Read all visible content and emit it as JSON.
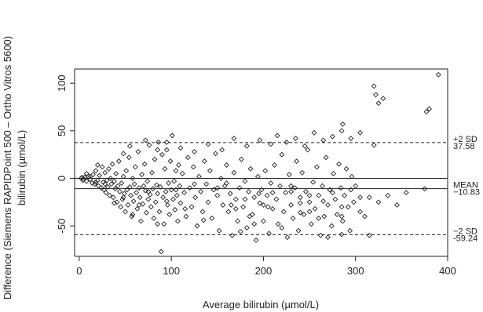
{
  "chart_data": {
    "type": "scatter",
    "title": "",
    "xlabel": "Average bilirubin (µmol/L)",
    "ylabel_line1": "Difference (Siemens RAPIDPoint 500 – Ortho Vitros 5600)",
    "ylabel_line2": "bilirubin (µmol/L)",
    "xlim": [
      -5,
      400
    ],
    "ylim": [
      -82,
      115
    ],
    "xticks": [
      "0",
      "100",
      "200",
      "300",
      "400"
    ],
    "yticks": [
      "-50",
      "0",
      "50",
      "100"
    ],
    "marker": "diamond-open",
    "reference_lines": [
      {
        "value": 37.58,
        "style": "dashed",
        "label_top": "+2 SD",
        "label_bottom": "37.58"
      },
      {
        "value": -10.83,
        "style": "solid",
        "label_top": "MEAN",
        "label_bottom": "−10.83"
      },
      {
        "value": -59.24,
        "style": "dashed",
        "label_top": "−2 SD",
        "label_bottom": "-59.24"
      }
    ],
    "zero_line": 0,
    "points": [
      [
        2,
        0
      ],
      [
        4,
        -2
      ],
      [
        6,
        1
      ],
      [
        8,
        -3
      ],
      [
        10,
        2
      ],
      [
        12,
        -1
      ],
      [
        14,
        -5
      ],
      [
        15,
        4
      ],
      [
        17,
        -6
      ],
      [
        18,
        8
      ],
      [
        20,
        -2
      ],
      [
        21,
        -8
      ],
      [
        22,
        3
      ],
      [
        24,
        -10
      ],
      [
        25,
        12
      ],
      [
        26,
        -4
      ],
      [
        27,
        -12
      ],
      [
        28,
        6
      ],
      [
        29,
        -15
      ],
      [
        30,
        -2
      ],
      [
        31,
        -9
      ],
      [
        32,
        10
      ],
      [
        33,
        -18
      ],
      [
        34,
        0
      ],
      [
        35,
        -6
      ],
      [
        36,
        15
      ],
      [
        37,
        -20
      ],
      [
        38,
        -3
      ],
      [
        39,
        -11
      ],
      [
        40,
        5
      ],
      [
        41,
        -25
      ],
      [
        42,
        -8
      ],
      [
        43,
        18
      ],
      [
        44,
        -14
      ],
      [
        45,
        -30
      ],
      [
        46,
        -5
      ],
      [
        47,
        -22
      ],
      [
        48,
        2
      ],
      [
        49,
        -16
      ],
      [
        50,
        -35
      ],
      [
        51,
        8
      ],
      [
        52,
        -12
      ],
      [
        53,
        -28
      ],
      [
        54,
        22
      ],
      [
        55,
        -9
      ],
      [
        56,
        -18
      ],
      [
        57,
        -40
      ],
      [
        58,
        0
      ],
      [
        59,
        -24
      ],
      [
        60,
        -6
      ],
      [
        61,
        12
      ],
      [
        62,
        -15
      ],
      [
        63,
        -32
      ],
      [
        64,
        28
      ],
      [
        65,
        -10
      ],
      [
        66,
        -20
      ],
      [
        67,
        -45
      ],
      [
        68,
        4
      ],
      [
        69,
        -27
      ],
      [
        70,
        -8
      ],
      [
        71,
        15
      ],
      [
        72,
        -13
      ],
      [
        73,
        -36
      ],
      [
        74,
        -3
      ],
      [
        75,
        -22
      ],
      [
        76,
        35
      ],
      [
        77,
        -17
      ],
      [
        78,
        -30
      ],
      [
        79,
        6
      ],
      [
        80,
        -11
      ],
      [
        81,
        -42
      ],
      [
        82,
        20
      ],
      [
        83,
        -25
      ],
      [
        84,
        -7
      ],
      [
        85,
        -16
      ],
      [
        86,
        38
      ],
      [
        87,
        -35
      ],
      [
        88,
        -9
      ],
      [
        89,
        -77
      ],
      [
        90,
        25
      ],
      [
        91,
        -20
      ],
      [
        92,
        -48
      ],
      [
        93,
        10
      ],
      [
        94,
        -14
      ],
      [
        95,
        30
      ],
      [
        96,
        -28
      ],
      [
        97,
        -5
      ],
      [
        98,
        -38
      ],
      [
        99,
        18
      ],
      [
        100,
        -12
      ],
      [
        101,
        45
      ],
      [
        102,
        -22
      ],
      [
        103,
        -3
      ],
      [
        104,
        -33
      ],
      [
        105,
        8
      ],
      [
        106,
        -18
      ],
      [
        107,
        -45
      ],
      [
        108,
        14
      ],
      [
        109,
        -8
      ],
      [
        110,
        -26
      ],
      [
        112,
        5
      ],
      [
        114,
        -15
      ],
      [
        116,
        -40
      ],
      [
        118,
        22
      ],
      [
        120,
        -10
      ],
      [
        122,
        -30
      ],
      [
        124,
        12
      ],
      [
        126,
        -20
      ],
      [
        128,
        -50
      ],
      [
        130,
        2
      ],
      [
        132,
        -14
      ],
      [
        134,
        -35
      ],
      [
        136,
        18
      ],
      [
        138,
        -6
      ],
      [
        140,
        -25
      ],
      [
        142,
        8
      ],
      [
        144,
        -42
      ],
      [
        146,
        -12
      ],
      [
        148,
        26
      ],
      [
        150,
        -18
      ],
      [
        152,
        -55
      ],
      [
        154,
        0
      ],
      [
        156,
        -28
      ],
      [
        158,
        -8
      ],
      [
        160,
        14
      ],
      [
        162,
        -35
      ],
      [
        164,
        -16
      ],
      [
        166,
        -60
      ],
      [
        168,
        6
      ],
      [
        170,
        -22
      ],
      [
        172,
        -45
      ],
      [
        174,
        -10
      ],
      [
        176,
        20
      ],
      [
        178,
        -30
      ],
      [
        180,
        -3
      ],
      [
        182,
        -52
      ],
      [
        184,
        -14
      ],
      [
        186,
        10
      ],
      [
        188,
        -38
      ],
      [
        190,
        -20
      ],
      [
        192,
        -65
      ],
      [
        194,
        2
      ],
      [
        196,
        -26
      ],
      [
        198,
        -12
      ],
      [
        200,
        -45
      ],
      [
        202,
        8
      ],
      [
        204,
        -18
      ],
      [
        206,
        -58
      ],
      [
        208,
        -5
      ],
      [
        210,
        -32
      ],
      [
        212,
        14
      ],
      [
        214,
        -22
      ],
      [
        216,
        -48
      ],
      [
        218,
        -8
      ],
      [
        220,
        25
      ],
      [
        222,
        -35
      ],
      [
        224,
        -15
      ],
      [
        226,
        -62
      ],
      [
        228,
        4
      ],
      [
        230,
        -28
      ],
      [
        232,
        -42
      ],
      [
        234,
        -10
      ],
      [
        236,
        18
      ],
      [
        238,
        -55
      ],
      [
        240,
        -20
      ],
      [
        242,
        6
      ],
      [
        244,
        -38
      ],
      [
        246,
        -14
      ],
      [
        248,
        30
      ],
      [
        250,
        -25
      ],
      [
        252,
        -48
      ],
      [
        254,
        -4
      ],
      [
        256,
        -32
      ],
      [
        258,
        12
      ],
      [
        260,
        -18
      ],
      [
        262,
        -60
      ],
      [
        264,
        -8
      ],
      [
        266,
        -40
      ],
      [
        268,
        22
      ],
      [
        270,
        -28
      ],
      [
        272,
        -12
      ],
      [
        274,
        -50
      ],
      [
        276,
        5
      ],
      [
        278,
        -22
      ],
      [
        280,
        -38
      ],
      [
        282,
        15
      ],
      [
        284,
        -10
      ],
      [
        286,
        -45
      ],
      [
        288,
        -18
      ],
      [
        290,
        10
      ],
      [
        292,
        -30
      ],
      [
        294,
        -55
      ],
      [
        296,
        2
      ],
      [
        298,
        -25
      ],
      [
        300,
        -8
      ],
      [
        305,
        -20
      ],
      [
        310,
        -40
      ],
      [
        315,
        -60
      ],
      [
        20,
        14
      ],
      [
        48,
        26
      ],
      [
        55,
        34
      ],
      [
        72,
        40
      ],
      [
        85,
        30
      ],
      [
        95,
        38
      ],
      [
        110,
        32
      ],
      [
        125,
        28
      ],
      [
        140,
        36
      ],
      [
        155,
        30
      ],
      [
        168,
        42
      ],
      [
        182,
        34
      ],
      [
        196,
        40
      ],
      [
        208,
        36
      ],
      [
        215,
        45
      ],
      [
        225,
        38
      ],
      [
        235,
        42
      ],
      [
        245,
        34
      ],
      [
        255,
        48
      ],
      [
        265,
        40
      ],
      [
        275,
        44
      ],
      [
        285,
        50
      ],
      [
        295,
        42
      ],
      [
        305,
        48
      ],
      [
        160,
        -5
      ],
      [
        170,
        -32
      ],
      [
        180,
        -22
      ],
      [
        190,
        -48
      ],
      [
        200,
        -28
      ],
      [
        210,
        -15
      ],
      [
        220,
        -52
      ],
      [
        230,
        -8
      ],
      [
        240,
        -36
      ],
      [
        250,
        -18
      ],
      [
        260,
        -42
      ],
      [
        275,
        -15
      ],
      [
        285,
        -30
      ],
      [
        295,
        -12
      ],
      [
        305,
        -35
      ],
      [
        315,
        -20
      ],
      [
        325,
        -25
      ],
      [
        335,
        -18
      ],
      [
        345,
        -28
      ],
      [
        355,
        -15
      ],
      [
        286,
        57
      ],
      [
        320,
        35
      ],
      [
        320,
        97
      ],
      [
        322,
        88
      ],
      [
        325,
        79
      ],
      [
        330,
        84
      ],
      [
        375,
        -11
      ],
      [
        377,
        70
      ],
      [
        380,
        73
      ],
      [
        390,
        109
      ],
      [
        270,
        -62
      ],
      [
        285,
        -59
      ],
      [
        285,
        -40
      ],
      [
        265,
        -24
      ],
      [
        250,
        -35
      ],
      [
        240,
        -26
      ],
      [
        230,
        -14
      ],
      [
        205,
        -30
      ],
      [
        195,
        -16
      ],
      [
        185,
        -40
      ],
      [
        175,
        -56
      ],
      [
        165,
        -28
      ],
      [
        150,
        -10
      ],
      [
        135,
        -44
      ],
      [
        125,
        -6
      ],
      [
        115,
        -32
      ],
      [
        105,
        -12
      ],
      [
        95,
        -24
      ],
      [
        85,
        -48
      ],
      [
        75,
        -14
      ],
      [
        65,
        -28
      ],
      [
        58,
        -38
      ],
      [
        48,
        -20
      ],
      [
        38,
        -26
      ],
      [
        28,
        -6
      ],
      [
        18,
        -4
      ],
      [
        12,
        2
      ],
      [
        8,
        5
      ],
      [
        5,
        -1
      ],
      [
        3,
        1
      ]
    ]
  }
}
